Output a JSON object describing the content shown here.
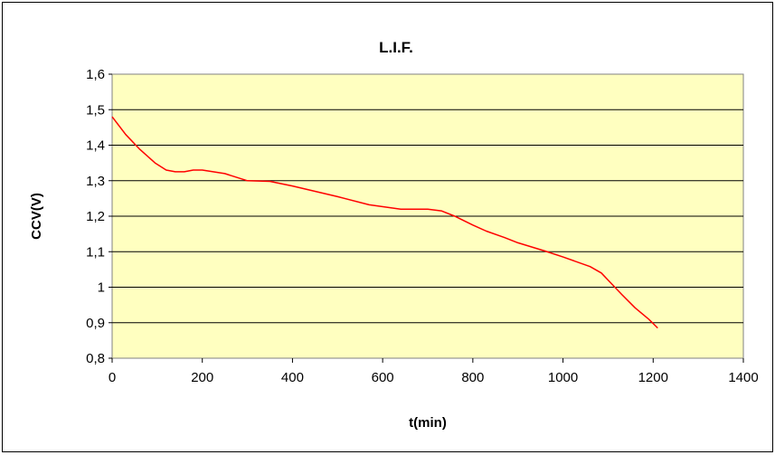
{
  "chart_data": {
    "type": "line",
    "title": "L.I.F.",
    "xlabel": "t(min)",
    "ylabel": "CCV(V)",
    "xlim": [
      0,
      1400
    ],
    "ylim": [
      0.8,
      1.6
    ],
    "x_ticks": [
      0,
      200,
      400,
      600,
      800,
      1000,
      1200,
      1400
    ],
    "x_tick_labels": [
      "0",
      "200",
      "400",
      "600",
      "800",
      "1000",
      "1200",
      "1400"
    ],
    "y_ticks": [
      0.8,
      0.9,
      1.0,
      1.1,
      1.2,
      1.3,
      1.4,
      1.5,
      1.6
    ],
    "y_tick_labels": [
      "0,8",
      "0,9",
      "1",
      "1,1",
      "1,2",
      "1,3",
      "1,4",
      "1,5",
      "1,6"
    ],
    "grid": "horizontal",
    "plot_background": "#FFFFC0",
    "series": [
      {
        "color": "#FF0000",
        "x": [
          0,
          30,
          60,
          95,
          120,
          140,
          160,
          180,
          200,
          250,
          300,
          350,
          400,
          500,
          570,
          640,
          700,
          730,
          760,
          800,
          830,
          870,
          900,
          960,
          1000,
          1060,
          1085,
          1100,
          1130,
          1160,
          1190,
          1210
        ],
        "y": [
          1.48,
          1.43,
          1.39,
          1.35,
          1.33,
          1.325,
          1.325,
          1.33,
          1.33,
          1.32,
          1.3,
          1.298,
          1.285,
          1.255,
          1.232,
          1.22,
          1.22,
          1.215,
          1.2,
          1.175,
          1.158,
          1.14,
          1.125,
          1.102,
          1.085,
          1.058,
          1.04,
          1.02,
          0.98,
          0.942,
          0.91,
          0.885
        ]
      }
    ]
  }
}
